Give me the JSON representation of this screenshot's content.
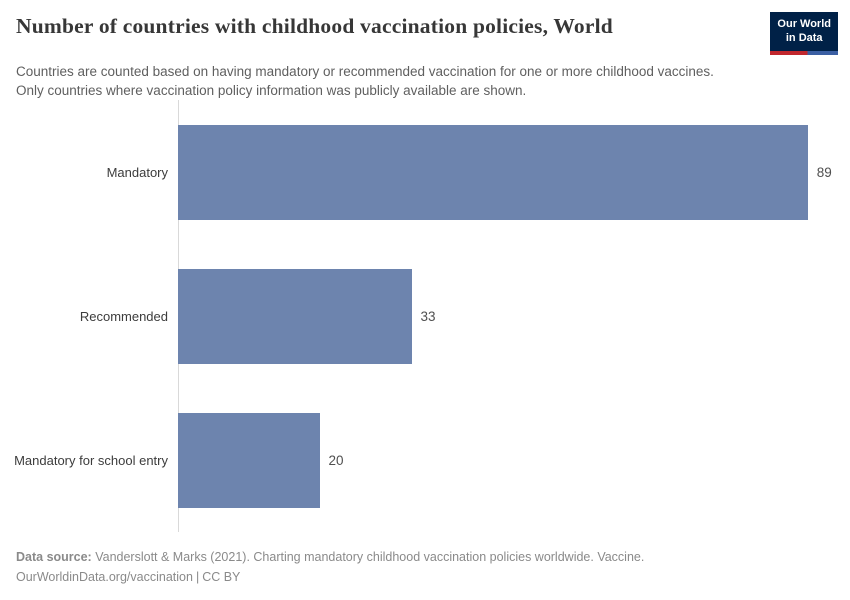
{
  "chart_data": {
    "type": "bar",
    "orientation": "horizontal",
    "title": "Number of countries with childhood vaccination policies, World",
    "subtitle": "Countries are counted based on having mandatory or recommended vaccination for one or more childhood vaccines. Only countries where vaccination policy information was publicly available are shown.",
    "categories": [
      "Mandatory",
      "Recommended",
      "Mandatory for school entry"
    ],
    "values": [
      89,
      33,
      20
    ],
    "xlim": [
      0,
      89
    ],
    "bar_color": "#6d84ae",
    "grid": false,
    "legend": "none",
    "value_labels_shown": true
  },
  "logo": {
    "line1": "Our World",
    "line2": "in Data",
    "bg_color": "#002147",
    "accent_red": "#c1272d",
    "accent_blue": "#3b5fa3"
  },
  "footer": {
    "source_label": "Data source:",
    "source_text": "Vanderslott & Marks (2021). Charting mandatory childhood vaccination policies worldwide. Vaccine.",
    "attribution_link": "OurWorldinData.org/vaccination",
    "separator": "|",
    "license": "CC BY"
  }
}
